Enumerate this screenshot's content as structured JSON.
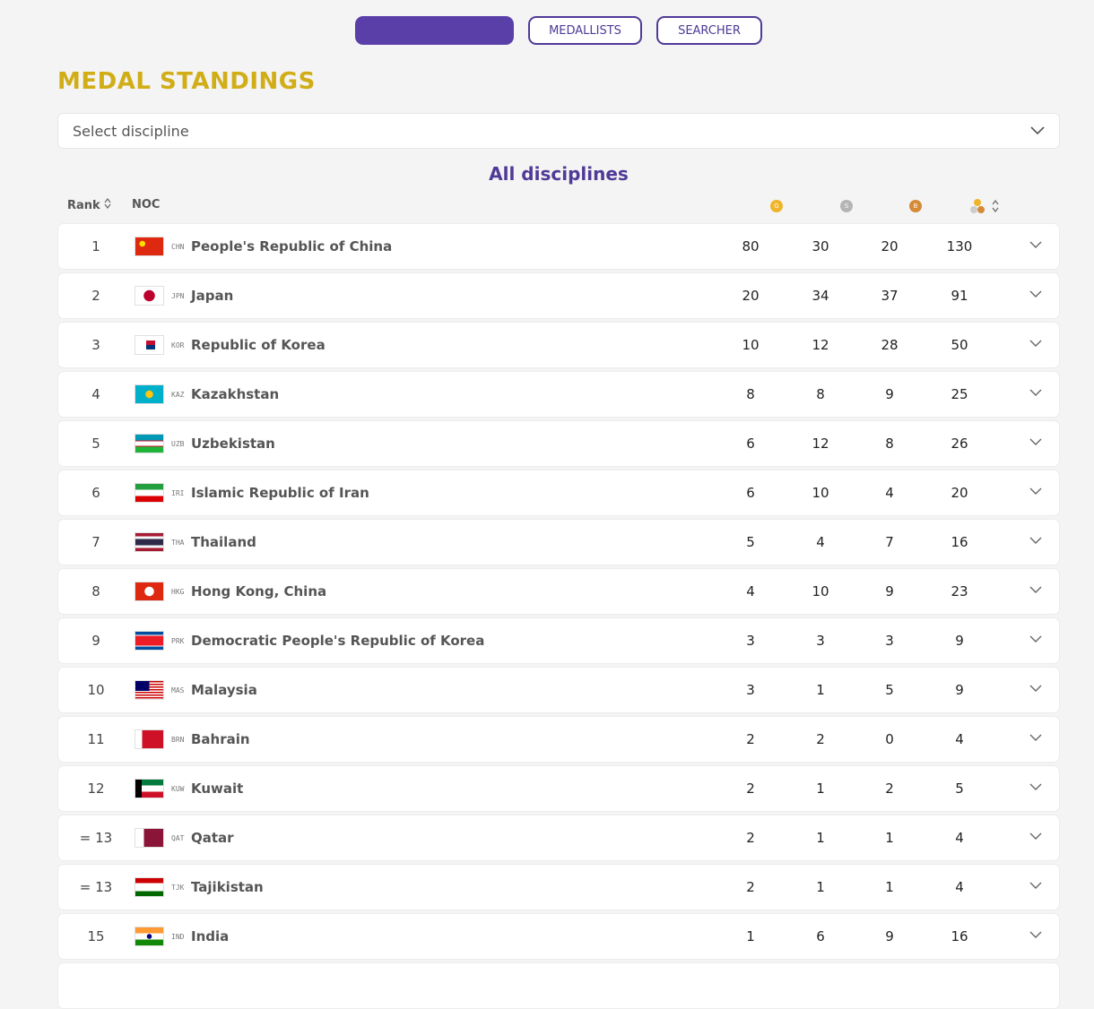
{
  "tabs": [
    "MEDALLISTS",
    "SEARCHER"
  ],
  "title": "MEDAL STANDINGS",
  "select_placeholder": "Select discipline",
  "subtitle": "All disciplines",
  "table": {
    "headers": {
      "rank": "Rank",
      "noc": "NOC"
    },
    "medal_letters": [
      "G",
      "S",
      "B"
    ],
    "rows": [
      [
        1,
        "CHN",
        "People's Republic of China",
        80,
        30,
        20,
        130
      ],
      [
        2,
        "JPN",
        "Japan",
        20,
        34,
        37,
        91
      ],
      [
        3,
        "KOR",
        "Republic of Korea",
        10,
        12,
        28,
        50
      ],
      [
        4,
        "KAZ",
        "Kazakhstan",
        8,
        8,
        9,
        25
      ],
      [
        5,
        "UZB",
        "Uzbekistan",
        6,
        12,
        8,
        26
      ],
      [
        6,
        "IRI",
        "Islamic Republic of Iran",
        6,
        10,
        4,
        20
      ],
      [
        7,
        "THA",
        "Thailand",
        5,
        4,
        7,
        16
      ],
      [
        8,
        "HKG",
        "Hong Kong, China",
        4,
        10,
        9,
        23
      ],
      [
        9,
        "PRK",
        "Democratic People's Republic of Korea",
        3,
        3,
        3,
        9
      ],
      [
        10,
        "MAS",
        "Malaysia",
        3,
        1,
        5,
        9
      ],
      [
        11,
        "BRN",
        "Bahrain",
        2,
        2,
        0,
        4
      ],
      [
        12,
        "KUW",
        "Kuwait",
        2,
        1,
        2,
        5
      ],
      [
        "= 13",
        "QAT",
        "Qatar",
        2,
        1,
        1,
        4
      ],
      [
        "= 13",
        "TJK",
        "Tajikistan",
        2,
        1,
        1,
        4
      ],
      [
        15,
        "IND",
        "India",
        1,
        6,
        9,
        16
      ]
    ]
  }
}
